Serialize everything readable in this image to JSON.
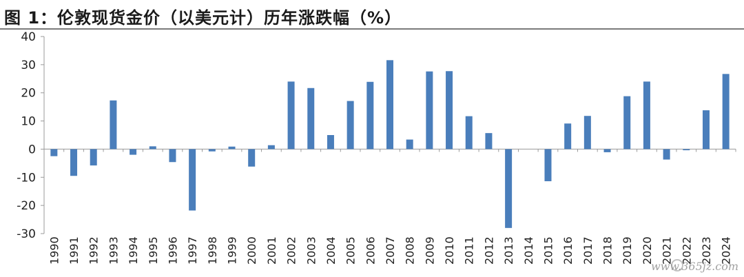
{
  "header": {
    "title": "图 1：伦敦现货金价（以美元计）历年涨跌幅（%）"
  },
  "watermark": "www.365jz.com",
  "colors": {
    "bar": "#4a7ebb",
    "axis": "#999999",
    "text": "#222222"
  },
  "chart_data": {
    "type": "bar",
    "title": "图 1：伦敦现货金价（以美元计）历年涨跌幅（%）",
    "xlabel": "",
    "ylabel": "",
    "ylim": [
      -30,
      40
    ],
    "yticks": [
      40,
      30,
      20,
      10,
      0,
      -10,
      -20,
      -30
    ],
    "grid": false,
    "legend": "none",
    "categories": [
      "1990",
      "1991",
      "1992",
      "1993",
      "1994",
      "1995",
      "1996",
      "1997",
      "1998",
      "1999",
      "2000",
      "2001",
      "2002",
      "2003",
      "2004",
      "2005",
      "2006",
      "2007",
      "2008",
      "2009",
      "2010",
      "2011",
      "2012",
      "2013",
      "2014",
      "2015",
      "2016",
      "2017",
      "2018",
      "2019",
      "2020",
      "2021",
      "2022",
      "2023",
      "2024"
    ],
    "values": [
      -2.5,
      -9.5,
      -5.8,
      17.3,
      -2.0,
      1.0,
      -4.6,
      -21.8,
      -0.8,
      0.9,
      -6.2,
      1.4,
      24.0,
      21.7,
      5.0,
      17.1,
      23.9,
      31.6,
      3.4,
      27.6,
      27.7,
      11.7,
      5.7,
      -28.0,
      0.0,
      -11.4,
      9.1,
      11.8,
      -1.1,
      18.8,
      24.0,
      -3.7,
      -0.4,
      13.8,
      26.7
    ]
  }
}
